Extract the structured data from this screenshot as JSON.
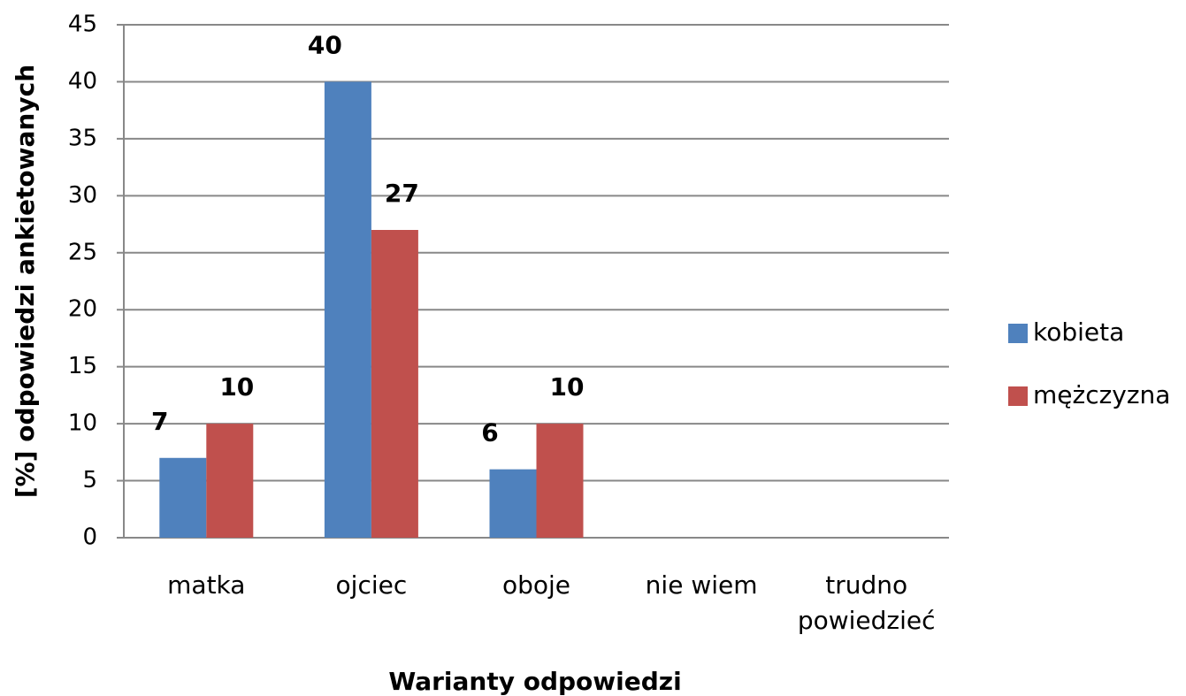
{
  "chart_data": {
    "type": "bar",
    "categories": [
      "matka",
      "ojciec",
      "oboje",
      "nie wiem",
      "trudno powiedzieć"
    ],
    "series": [
      {
        "name": "kobieta",
        "color": "#4f81bd",
        "values": [
          7,
          40,
          6,
          null,
          null
        ]
      },
      {
        "name": "mężczyzna",
        "color": "#c0504d",
        "values": [
          10,
          27,
          10,
          null,
          null
        ]
      }
    ],
    "xlabel": "Warianty odpowiedzi",
    "ylabel": "[%] odpowiedzi ankietowanych",
    "ylim": [
      0,
      45
    ],
    "yticks": [
      0,
      5,
      10,
      15,
      20,
      25,
      30,
      35,
      40,
      45
    ],
    "grid": true,
    "legend": "right"
  }
}
